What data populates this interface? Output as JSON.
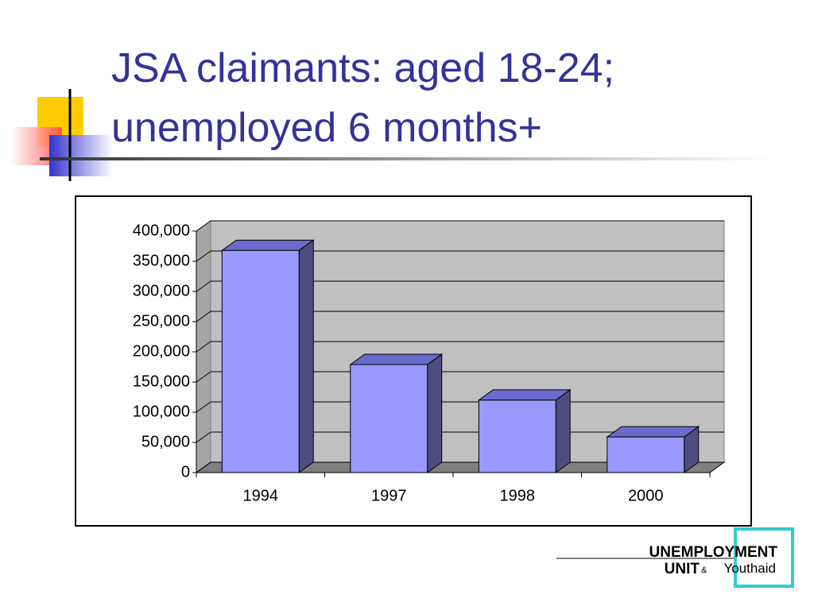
{
  "chart_data": {
    "type": "bar3d",
    "title_lines": [
      "JSA claimants: aged 18-24;",
      "unemployed 6 months+"
    ],
    "categories": [
      "1994",
      "1997",
      "1998",
      "2000"
    ],
    "values": [
      368000,
      179000,
      120000,
      59000
    ],
    "color": "#9999ff",
    "ylim": [
      0,
      400000
    ],
    "yticks": [
      0,
      {
        "value": 50000,
        "label": "50,000"
      },
      {
        "value": 100000,
        "label": "100,000"
      },
      {
        "value": 150000,
        "label": "150,000"
      },
      {
        "value": 200000,
        "label": "200,000"
      },
      {
        "value": 250000,
        "label": "250,000"
      },
      {
        "value": 300000,
        "label": "300,000"
      },
      {
        "value": 350000,
        "label": "350,000"
      },
      {
        "value": 400000,
        "label": "400,000"
      }
    ],
    "grid": true
  },
  "logo": {
    "line1": "UNEMPLOYMENT",
    "line2": "UNIT",
    "amp": "&",
    "line3": "Youthaid"
  }
}
